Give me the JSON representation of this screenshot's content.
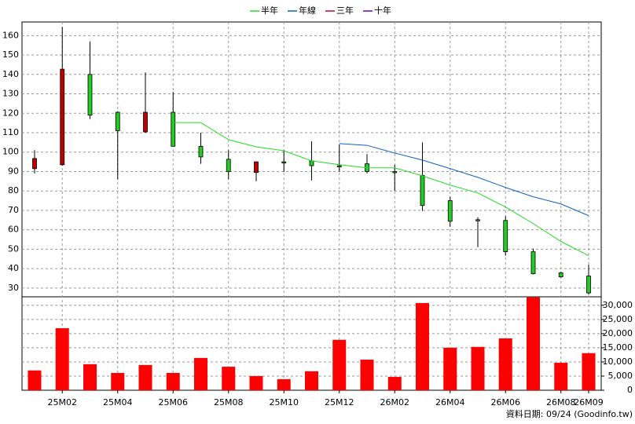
{
  "chart_data": {
    "type": "candlestick",
    "categories": [
      null,
      "25M02",
      null,
      "25M04",
      null,
      "25M06",
      null,
      "25M08",
      null,
      "25M10",
      null,
      "25M12",
      null,
      "26M02",
      null,
      "26M04",
      null,
      "26M06",
      null,
      "26M08",
      "26M09"
    ],
    "open": [
      91.5,
      93.5,
      140,
      120.5,
      110.4,
      120.5,
      103,
      96.3,
      89.5,
      95,
      95.5,
      93,
      94,
      90,
      88,
      75,
      65.2,
      64.8,
      48.7,
      37.8,
      36.2
    ],
    "high": [
      101,
      164.4,
      157,
      121,
      141,
      131,
      110,
      101,
      95,
      101,
      105.6,
      104,
      99,
      93.5,
      105,
      77,
      66.5,
      67,
      50.3,
      38.5,
      42
    ],
    "low": [
      89,
      93,
      117,
      86,
      110,
      103,
      94,
      86,
      85,
      89.8,
      85.4,
      90,
      89,
      80,
      69.7,
      61.6,
      51,
      46.7,
      37,
      35.4,
      26.6
    ],
    "close": [
      96.7,
      142.7,
      119,
      111,
      120.5,
      103,
      97.5,
      90,
      95,
      94.5,
      93,
      92.5,
      90,
      89.5,
      72.5,
      64.4,
      64.8,
      48.7,
      37.4,
      35.8,
      27.5
    ],
    "up_color": "#c00000",
    "down_color": "#22cc22",
    "series": [
      {
        "name": "半年",
        "color": "#22dd22",
        "values": [
          null,
          null,
          null,
          null,
          null,
          115.2,
          115.2,
          106.4,
          102.7,
          100.7,
          95.5,
          93.5,
          91.9,
          91.9,
          87.8,
          83,
          79,
          71.7,
          63.2,
          54,
          46.7
        ]
      },
      {
        "name": "年線",
        "color": "#1060c0",
        "values": [
          null,
          null,
          null,
          null,
          null,
          null,
          null,
          null,
          null,
          null,
          null,
          104.4,
          103.5,
          99.5,
          95.9,
          91.5,
          87,
          81.8,
          77,
          73.3,
          67.3
        ]
      },
      {
        "name": "三年",
        "color": "#cc0033",
        "values": [
          null,
          null,
          null,
          null,
          null,
          null,
          null,
          null,
          null,
          null,
          null,
          null,
          null,
          null,
          null,
          null,
          null,
          null,
          null,
          null,
          null
        ]
      },
      {
        "name": "十年",
        "color": "#6600cc",
        "values": [
          null,
          null,
          null,
          null,
          null,
          null,
          null,
          null,
          null,
          null,
          null,
          null,
          null,
          null,
          null,
          null,
          null,
          null,
          null,
          null,
          null
        ]
      }
    ],
    "volume": [
      7000,
      21900,
      9200,
      6100,
      8900,
      6100,
      11400,
      8300,
      5000,
      3900,
      6700,
      17800,
      10800,
      4700,
      30800,
      15000,
      15300,
      18300,
      32800,
      9700,
      13100
    ],
    "volume_color": "#ff0000",
    "ylim": [
      25.5,
      167
    ],
    "yticks": [
      30,
      40,
      50,
      60,
      70,
      80,
      90,
      100,
      110,
      120,
      130,
      140,
      150,
      160
    ],
    "y2lim": [
      0,
      33000
    ],
    "y2ticks": [
      0,
      {
        "value": 5000,
        "label": "5,000"
      },
      {
        "value": 10000,
        "label": "10,000"
      },
      {
        "value": 15000,
        "label": "15,000"
      },
      {
        "value": 20000,
        "label": "20,000"
      },
      {
        "value": 25000,
        "label": "25,000"
      },
      {
        "value": 30000,
        "label": "30,000"
      }
    ],
    "grid": true,
    "footer": "資料日期: 09/24  (Goodinfo.tw)"
  }
}
